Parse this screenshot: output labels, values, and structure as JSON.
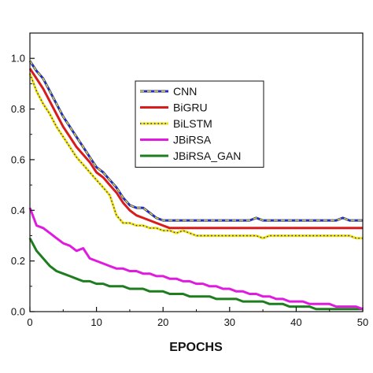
{
  "chart_data": {
    "type": "line",
    "title": "",
    "xlabel": "EPOCHS",
    "ylabel": "",
    "xlim": [
      0,
      50
    ],
    "ylim": [
      0,
      1.1
    ],
    "x_ticks": [
      0,
      10,
      20,
      30,
      40,
      50
    ],
    "y_ticks": [
      0.0,
      0.2,
      0.4,
      0.6,
      0.8,
      1.0
    ],
    "x_tick_labels": [
      "0",
      "10",
      "20",
      "30",
      "40",
      "50"
    ],
    "y_tick_labels": [
      "0.0",
      "0.2",
      "0.4",
      "0.6",
      "0.8",
      "1.0"
    ],
    "grid": false,
    "legend_position": "top-center",
    "x": [
      0,
      1,
      2,
      3,
      4,
      5,
      6,
      7,
      8,
      9,
      10,
      11,
      12,
      13,
      14,
      15,
      16,
      17,
      18,
      19,
      20,
      21,
      22,
      23,
      24,
      25,
      26,
      27,
      28,
      29,
      30,
      31,
      32,
      33,
      34,
      35,
      36,
      37,
      38,
      39,
      40,
      41,
      42,
      43,
      44,
      45,
      46,
      47,
      48,
      49,
      50
    ],
    "series": [
      {
        "name": "CNN",
        "color": "#1f2fbf",
        "dashed_overlay": "#f2e200",
        "values": [
          0.99,
          0.95,
          0.92,
          0.87,
          0.82,
          0.77,
          0.73,
          0.69,
          0.65,
          0.61,
          0.57,
          0.55,
          0.52,
          0.49,
          0.45,
          0.42,
          0.41,
          0.41,
          0.39,
          0.37,
          0.36,
          0.36,
          0.36,
          0.36,
          0.36,
          0.36,
          0.36,
          0.36,
          0.36,
          0.36,
          0.36,
          0.36,
          0.36,
          0.36,
          0.37,
          0.36,
          0.36,
          0.36,
          0.36,
          0.36,
          0.36,
          0.36,
          0.36,
          0.36,
          0.36,
          0.36,
          0.36,
          0.37,
          0.36,
          0.36,
          0.36
        ]
      },
      {
        "name": "BiGRU",
        "color": "#d81c1c",
        "values": [
          0.96,
          0.92,
          0.88,
          0.83,
          0.78,
          0.73,
          0.69,
          0.65,
          0.62,
          0.59,
          0.55,
          0.53,
          0.5,
          0.47,
          0.43,
          0.4,
          0.38,
          0.37,
          0.36,
          0.35,
          0.34,
          0.33,
          0.33,
          0.33,
          0.33,
          0.33,
          0.33,
          0.33,
          0.33,
          0.33,
          0.33,
          0.33,
          0.33,
          0.33,
          0.33,
          0.33,
          0.33,
          0.33,
          0.33,
          0.33,
          0.33,
          0.33,
          0.33,
          0.33,
          0.33,
          0.33,
          0.33,
          0.33,
          0.33,
          0.33,
          0.33
        ]
      },
      {
        "name": "BiLSTM",
        "color": "#f2e200",
        "dotted_overlay": "#1f2fbf",
        "values": [
          0.94,
          0.87,
          0.82,
          0.78,
          0.73,
          0.69,
          0.65,
          0.61,
          0.58,
          0.55,
          0.52,
          0.49,
          0.46,
          0.38,
          0.35,
          0.35,
          0.34,
          0.34,
          0.33,
          0.33,
          0.32,
          0.32,
          0.31,
          0.32,
          0.31,
          0.3,
          0.3,
          0.3,
          0.3,
          0.3,
          0.3,
          0.3,
          0.3,
          0.3,
          0.3,
          0.29,
          0.3,
          0.3,
          0.3,
          0.3,
          0.3,
          0.3,
          0.3,
          0.3,
          0.3,
          0.3,
          0.3,
          0.3,
          0.3,
          0.29,
          0.29
        ]
      },
      {
        "name": "JBiRSA",
        "color": "#e01be0",
        "values": [
          0.41,
          0.34,
          0.33,
          0.31,
          0.29,
          0.27,
          0.26,
          0.24,
          0.25,
          0.21,
          0.2,
          0.19,
          0.18,
          0.17,
          0.17,
          0.16,
          0.16,
          0.15,
          0.15,
          0.14,
          0.14,
          0.13,
          0.13,
          0.12,
          0.12,
          0.11,
          0.11,
          0.1,
          0.1,
          0.09,
          0.09,
          0.08,
          0.08,
          0.07,
          0.07,
          0.06,
          0.06,
          0.05,
          0.05,
          0.04,
          0.04,
          0.04,
          0.03,
          0.03,
          0.03,
          0.03,
          0.02,
          0.02,
          0.02,
          0.02,
          0.01
        ]
      },
      {
        "name": "JBiRSA_GAN",
        "color": "#1e7d1e",
        "values": [
          0.29,
          0.24,
          0.21,
          0.18,
          0.16,
          0.15,
          0.14,
          0.13,
          0.12,
          0.12,
          0.11,
          0.11,
          0.1,
          0.1,
          0.1,
          0.09,
          0.09,
          0.09,
          0.08,
          0.08,
          0.08,
          0.07,
          0.07,
          0.07,
          0.06,
          0.06,
          0.06,
          0.06,
          0.05,
          0.05,
          0.05,
          0.05,
          0.04,
          0.04,
          0.04,
          0.04,
          0.03,
          0.03,
          0.03,
          0.02,
          0.02,
          0.02,
          0.02,
          0.01,
          0.01,
          0.01,
          0.01,
          0.01,
          0.01,
          0.01,
          0.01
        ]
      }
    ]
  }
}
